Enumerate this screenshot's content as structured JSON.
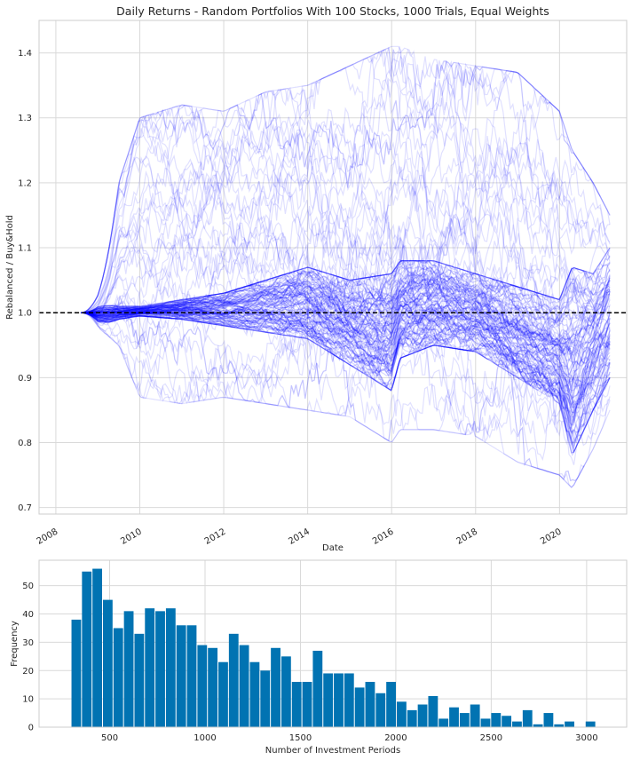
{
  "chart_data": [
    {
      "type": "line",
      "title": "Daily Returns - Random Portfolios With 100 Stocks, 1000 Trials, Equal Weights",
      "xlabel": "Date",
      "ylabel": "Rebalanced / Buy&Hold",
      "xlim": [
        2007.6,
        2021.6
      ],
      "ylim": [
        0.69,
        1.45
      ],
      "x_ticks": [
        "2008",
        "2010",
        "2012",
        "2014",
        "2016",
        "2018",
        "2020"
      ],
      "y_ticks": [
        "0.7",
        "0.8",
        "0.9",
        "1.0",
        "1.1",
        "1.2",
        "1.3",
        "1.4"
      ],
      "line_color": "#0000ff",
      "line_alpha": 0.1,
      "reference_line": {
        "y": 1.0,
        "style": "dashed",
        "color": "#000000"
      },
      "series_count": 1000,
      "series_start": 2008.6,
      "series_end": 2021.2,
      "envelope": {
        "x": [
          2008.6,
          2009.0,
          2009.5,
          2010,
          2011,
          2012,
          2013,
          2014,
          2015,
          2016,
          2016.2,
          2017,
          2018,
          2019,
          2020,
          2020.3,
          2020.8,
          2021.2
        ],
        "upper": [
          1.0,
          1.06,
          1.2,
          1.3,
          1.32,
          1.31,
          1.34,
          1.35,
          1.38,
          1.41,
          1.41,
          1.39,
          1.38,
          1.37,
          1.31,
          1.25,
          1.2,
          1.15
        ],
        "lower": [
          1.0,
          0.95,
          0.95,
          0.87,
          0.86,
          0.87,
          0.86,
          0.85,
          0.84,
          0.8,
          0.82,
          0.82,
          0.81,
          0.77,
          0.75,
          0.73,
          0.79,
          0.85
        ],
        "core_upper": [
          1.0,
          1.02,
          1.01,
          1.01,
          1.02,
          1.03,
          1.05,
          1.07,
          1.05,
          1.06,
          1.08,
          1.08,
          1.06,
          1.04,
          1.02,
          1.07,
          1.06,
          1.1
        ],
        "core_lower": [
          1.0,
          0.97,
          0.99,
          0.995,
          0.99,
          0.98,
          0.97,
          0.96,
          0.92,
          0.88,
          0.93,
          0.95,
          0.94,
          0.9,
          0.86,
          0.78,
          0.85,
          0.9
        ]
      }
    },
    {
      "type": "bar",
      "title": "",
      "xlabel": "Number of Investment Periods",
      "ylabel": "Frequency",
      "xlim": [
        130,
        3210
      ],
      "ylim": [
        0,
        59
      ],
      "x_ticks": [
        500,
        1000,
        1500,
        2000,
        2500,
        3000
      ],
      "y_ticks": [
        0,
        10,
        20,
        30,
        40,
        50
      ],
      "bin_start": 300,
      "bin_width": 55,
      "values": [
        38,
        55,
        56,
        45,
        35,
        41,
        33,
        42,
        41,
        42,
        36,
        36,
        29,
        28,
        23,
        33,
        29,
        23,
        20,
        28,
        25,
        16,
        16,
        27,
        19,
        19,
        19,
        14,
        16,
        12,
        16,
        9,
        6,
        8,
        11,
        3,
        7,
        5,
        8,
        3,
        5,
        4,
        2,
        6,
        1,
        5,
        1,
        2,
        0,
        2
      ],
      "color": "#0173b2"
    }
  ]
}
